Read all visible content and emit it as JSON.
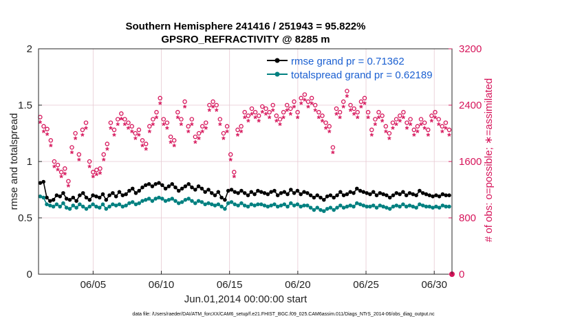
{
  "chart_data": {
    "type": "line",
    "title_line1": "Southern Hemisphere 241416 / 251943 = 95.822%",
    "title_line2": "GPSRO_REFRACTIVITY @ 8285 m",
    "xlabel": "Jun.01,2014 00:00:00 start",
    "ylabel_left": "rmse and totalspread",
    "ylabel_right": "# of obs: o=possible; ∗=assimilated",
    "xlim": [
      1,
      31.3
    ],
    "ylim_left": [
      0,
      2
    ],
    "ylim_right": [
      0,
      3200
    ],
    "x_ticks": [
      5,
      10,
      15,
      20,
      25,
      30
    ],
    "x_tick_labels": [
      "06/05",
      "06/10",
      "06/15",
      "06/20",
      "06/25",
      "06/30"
    ],
    "y_ticks_left": [
      0,
      0.5,
      1,
      1.5,
      2
    ],
    "y_tick_labels_left": [
      "0",
      "0.5",
      "1",
      "1.5",
      "2"
    ],
    "y_ticks_right": [
      0,
      800,
      1600,
      2400,
      3200
    ],
    "y_tick_labels_right": [
      "0",
      "800",
      "1600",
      "2400",
      "3200"
    ],
    "grid": true,
    "legend_position": "top-right",
    "series": [
      {
        "name": "rmse grand pr = 0.71362",
        "color": "#000000",
        "axis": "left",
        "values": [
          0.81,
          0.82,
          0.68,
          0.65,
          0.66,
          0.7,
          0.69,
          0.72,
          0.67,
          0.66,
          0.68,
          0.65,
          0.7,
          0.72,
          0.68,
          0.66,
          0.7,
          0.69,
          0.68,
          0.71,
          0.66,
          0.7,
          0.72,
          0.69,
          0.73,
          0.7,
          0.71,
          0.74,
          0.76,
          0.72,
          0.74,
          0.77,
          0.79,
          0.8,
          0.78,
          0.8,
          0.81,
          0.79,
          0.76,
          0.78,
          0.8,
          0.77,
          0.74,
          0.76,
          0.78,
          0.8,
          0.77,
          0.75,
          0.78,
          0.76,
          0.73,
          0.75,
          0.72,
          0.7,
          0.73,
          0.68,
          0.66,
          0.74,
          0.75,
          0.73,
          0.72,
          0.74,
          0.72,
          0.7,
          0.73,
          0.71,
          0.74,
          0.73,
          0.72,
          0.71,
          0.73,
          0.74,
          0.7,
          0.72,
          0.73,
          0.71,
          0.75,
          0.72,
          0.74,
          0.71,
          0.73,
          0.72,
          0.7,
          0.68,
          0.7,
          0.68,
          0.66,
          0.69,
          0.7,
          0.68,
          0.7,
          0.73,
          0.7,
          0.71,
          0.73,
          0.72,
          0.76,
          0.74,
          0.73,
          0.72,
          0.71,
          0.73,
          0.7,
          0.72,
          0.71,
          0.7,
          0.68,
          0.7,
          0.72,
          0.71,
          0.73,
          0.7,
          0.72,
          0.71,
          0.7,
          0.74,
          0.72,
          0.71,
          0.7,
          0.69,
          0.7,
          0.69,
          0.71,
          0.7,
          0.7
        ]
      },
      {
        "name": "totalspread grand pr = 0.62189",
        "color": "#008080",
        "axis": "left",
        "values": [
          0.69,
          0.68,
          0.62,
          0.61,
          0.6,
          0.62,
          0.6,
          0.63,
          0.59,
          0.58,
          0.61,
          0.59,
          0.62,
          0.6,
          0.58,
          0.6,
          0.62,
          0.6,
          0.59,
          0.62,
          0.58,
          0.6,
          0.62,
          0.61,
          0.62,
          0.6,
          0.61,
          0.63,
          0.64,
          0.62,
          0.63,
          0.65,
          0.66,
          0.67,
          0.65,
          0.67,
          0.68,
          0.67,
          0.65,
          0.66,
          0.67,
          0.65,
          0.63,
          0.64,
          0.66,
          0.67,
          0.65,
          0.63,
          0.65,
          0.64,
          0.62,
          0.63,
          0.62,
          0.61,
          0.62,
          0.6,
          0.58,
          0.63,
          0.64,
          0.62,
          0.61,
          0.63,
          0.61,
          0.6,
          0.62,
          0.61,
          0.62,
          0.62,
          0.61,
          0.6,
          0.61,
          0.62,
          0.6,
          0.61,
          0.62,
          0.6,
          0.63,
          0.61,
          0.62,
          0.6,
          0.61,
          0.61,
          0.59,
          0.57,
          0.59,
          0.57,
          0.56,
          0.58,
          0.59,
          0.57,
          0.59,
          0.61,
          0.59,
          0.6,
          0.61,
          0.6,
          0.63,
          0.62,
          0.61,
          0.6,
          0.6,
          0.61,
          0.59,
          0.61,
          0.6,
          0.59,
          0.58,
          0.6,
          0.61,
          0.6,
          0.62,
          0.6,
          0.61,
          0.6,
          0.59,
          0.62,
          0.61,
          0.6,
          0.6,
          0.59,
          0.6,
          0.59,
          0.61,
          0.6,
          0.6
        ]
      },
      {
        "name": "obs possible",
        "marker": "o",
        "color": "#d6145a",
        "axis": "right",
        "values": [
          2230,
          2100,
          2060,
          1900,
          1600,
          1550,
          1450,
          1500,
          1320,
          1800,
          2000,
          1700,
          2050,
          2150,
          1600,
          1450,
          1480,
          1500,
          1700,
          1850,
          2150,
          2050,
          2200,
          2280,
          2200,
          2150,
          2100,
          2000,
          2050,
          1900,
          1850,
          2100,
          2200,
          2300,
          2500,
          2200,
          2150,
          1950,
          1900,
          2300,
          2200,
          2450,
          2100,
          2200,
          1950,
          2000,
          2100,
          2150,
          2400,
          2450,
          2400,
          2200,
          2000,
          2100,
          1700,
          1450,
          2050,
          2100,
          2300,
          2250,
          2350,
          2300,
          2250,
          2380,
          2350,
          2300,
          2400,
          2250,
          2200,
          2300,
          2400,
          2350,
          2450,
          2300,
          2500,
          2550,
          2450,
          2500,
          2400,
          2300,
          2250,
          2150,
          2100,
          1800,
          2350,
          2300,
          2450,
          2600,
          2400,
          2350,
          2300,
          2450,
          2500,
          2300,
          2050,
          2200,
          2300,
          2250,
          2100,
          2000,
          2150,
          2200,
          2250,
          2300,
          2150,
          2200,
          2050,
          2100,
          2200,
          2150,
          2050,
          2250,
          2300,
          2200,
          2100,
          2150,
          2050
        ]
      },
      {
        "name": "obs assimilated",
        "marker": "*",
        "color": "#d6145a",
        "axis": "right",
        "values": [
          2150,
          2020,
          1980,
          1820,
          1520,
          1480,
          1380,
          1420,
          1250,
          1720,
          1920,
          1620,
          1970,
          2070,
          1520,
          1380,
          1410,
          1430,
          1620,
          1770,
          2070,
          1970,
          2120,
          2200,
          2120,
          2070,
          2020,
          1920,
          1970,
          1820,
          1770,
          2020,
          2120,
          2220,
          2420,
          2120,
          2070,
          1870,
          1820,
          2220,
          2120,
          2370,
          2020,
          2120,
          1870,
          1920,
          2020,
          2070,
          2320,
          2370,
          2320,
          2120,
          1920,
          2020,
          1620,
          1380,
          1970,
          2020,
          2220,
          2170,
          2270,
          2220,
          2170,
          2300,
          2270,
          2220,
          2320,
          2170,
          2120,
          2220,
          2320,
          2270,
          2370,
          2220,
          2420,
          2470,
          2370,
          2420,
          2320,
          2220,
          2170,
          2070,
          2020,
          1720,
          2270,
          2220,
          2370,
          2520,
          2320,
          2270,
          2220,
          2370,
          2420,
          2220,
          1970,
          2120,
          2220,
          2170,
          2020,
          1920,
          2070,
          2120,
          2170,
          2220,
          2070,
          2120,
          1970,
          2020,
          2120,
          2070,
          1970,
          2170,
          2220,
          2120,
          2020,
          2070,
          1970
        ]
      }
    ],
    "legend": [
      {
        "label": "rmse grand pr = 0.71362",
        "color": "#000000"
      },
      {
        "label": "totalspread grand pr = 0.62189",
        "color": "#008080"
      }
    ],
    "footer": "data file: /Users/raeder/DAI/ATM_forcXX/CAM6_setup/f.e21.FHIST_BGC.f09_025.CAM6assim.011/Diags_NTrS_2014-06/obs_diag_output.nc"
  }
}
